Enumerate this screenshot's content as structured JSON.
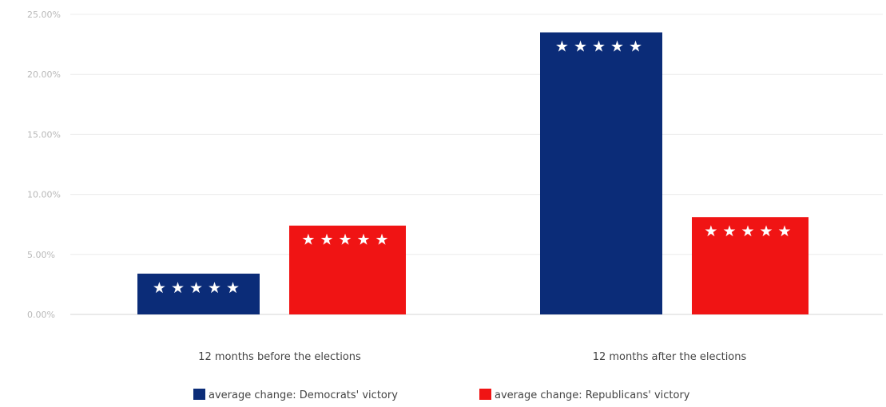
{
  "chart_data": {
    "type": "bar",
    "title": "",
    "xlabel": "",
    "ylabel": "",
    "categories": [
      "12 months before the elections",
      "12 months after the elections"
    ],
    "series": [
      {
        "name": "average change: Democrats' victory",
        "values": [
          3.4,
          23.5
        ],
        "color": "#0b2c78"
      },
      {
        "name": "average change: Republicans' victory",
        "values": [
          7.4,
          8.1
        ],
        "color": "#f01414"
      }
    ],
    "ylim": [
      0,
      25
    ],
    "yticks": [
      0,
      5,
      10,
      15,
      20,
      25
    ],
    "ytick_labels": [
      "0.00%",
      "5.00%",
      "10.00%",
      "15.00%",
      "20.00%",
      "25.00%"
    ],
    "bar_decoration": "★★★★★",
    "grid": true,
    "legend_position": "bottom"
  }
}
